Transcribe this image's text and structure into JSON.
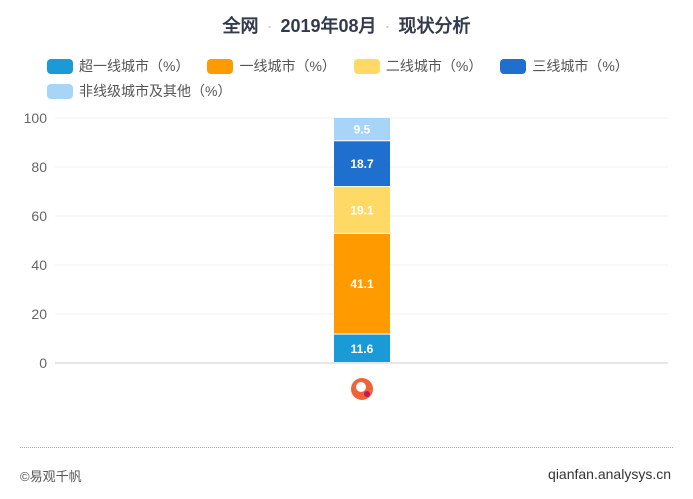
{
  "chart_data": {
    "type": "bar",
    "stacked": true,
    "title_parts": [
      "全网",
      "2019年08月",
      "现状分析"
    ],
    "categories": [
      "app-logo"
    ],
    "series": [
      {
        "name": "超一线城市（%）",
        "values": [
          11.6
        ],
        "color": "#1a9ad6"
      },
      {
        "name": "一线城市（%）",
        "values": [
          41.1
        ],
        "color": "#ff9a00"
      },
      {
        "name": "二线城市（%）",
        "values": [
          19.1
        ],
        "color": "#ffd966"
      },
      {
        "name": "三线城市（%）",
        "values": [
          18.7
        ],
        "color": "#1f6fce"
      },
      {
        "name": "非线级城市及其他（%）",
        "values": [
          9.5
        ],
        "color": "#a8d4f7"
      }
    ],
    "ylim": [
      0,
      100
    ],
    "yticks": [
      0,
      20,
      40,
      60,
      80,
      100
    ],
    "grid": true,
    "legend": "top"
  },
  "footer": {
    "copyright": "©易观千帆",
    "site": "qianfan.analysys.cn"
  }
}
